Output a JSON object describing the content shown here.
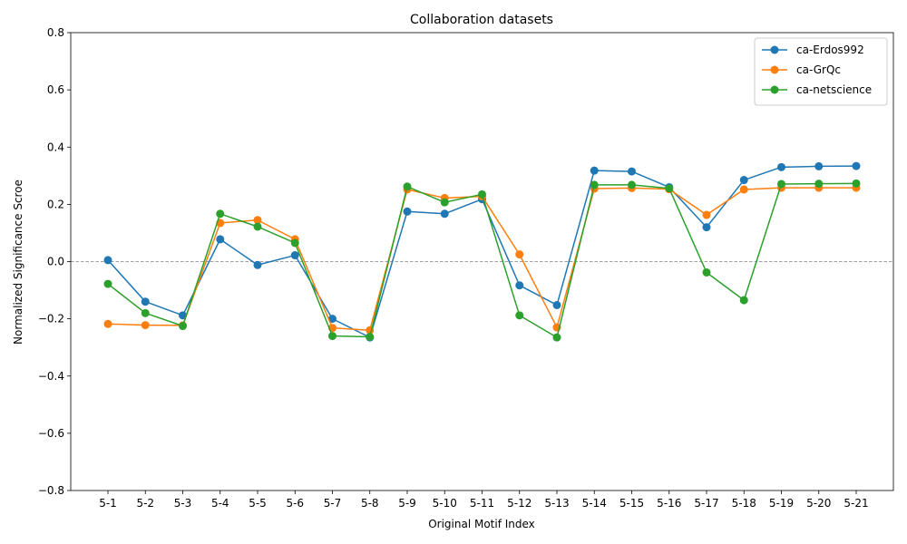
{
  "chart_data": {
    "type": "line",
    "title": "Collaboration datasets",
    "xlabel": "Original Motif Index",
    "ylabel": "Normalized Significance Scroe",
    "ylim": [
      -0.8,
      0.8
    ],
    "yticks": [
      -0.8,
      -0.6,
      -0.4,
      -0.2,
      0.0,
      0.2,
      0.4,
      0.6,
      0.8
    ],
    "ytick_labels": [
      "−0.8",
      "−0.6",
      "−0.4",
      "−0.2",
      "0.0",
      "0.2",
      "0.4",
      "0.6",
      "0.8"
    ],
    "categories": [
      "5-1",
      "5-2",
      "5-3",
      "5-4",
      "5-5",
      "5-6",
      "5-7",
      "5-8",
      "5-9",
      "5-10",
      "5-11",
      "5-12",
      "5-13",
      "5-14",
      "5-15",
      "5-16",
      "5-17",
      "5-18",
      "5-19",
      "5-20",
      "5-21"
    ],
    "reference_line": 0.0,
    "grid": false,
    "legend_position": "top-right",
    "series": [
      {
        "name": "ca-Erdos992",
        "color": "#1f77b4",
        "values": [
          0.005,
          -0.14,
          -0.188,
          0.078,
          -0.012,
          0.022,
          -0.2,
          -0.265,
          0.175,
          0.167,
          0.218,
          -0.083,
          -0.152,
          0.318,
          0.315,
          0.26,
          0.12,
          0.285,
          0.33,
          0.333,
          0.334
        ]
      },
      {
        "name": "ca-GrQc",
        "color": "#ff7f0e",
        "values": [
          -0.218,
          -0.222,
          -0.223,
          0.135,
          0.145,
          0.078,
          -0.232,
          -0.24,
          0.252,
          0.222,
          0.228,
          0.025,
          -0.23,
          0.255,
          0.257,
          0.253,
          0.163,
          0.252,
          0.258,
          0.258,
          0.258
        ]
      },
      {
        "name": "ca-netscience",
        "color": "#2ca02c",
        "values": [
          -0.078,
          -0.18,
          -0.225,
          0.167,
          0.122,
          0.065,
          -0.26,
          -0.263,
          0.262,
          0.207,
          0.235,
          -0.188,
          -0.265,
          0.268,
          0.268,
          0.256,
          -0.038,
          -0.135,
          0.271,
          0.272,
          0.273
        ]
      }
    ]
  }
}
